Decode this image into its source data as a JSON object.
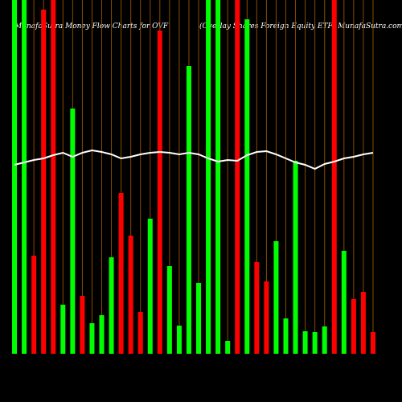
{
  "chart_data": {
    "type": "bar",
    "title": "MunafaSutra  Money Flow  Charts for OVF",
    "subtitle": "(Overlay Shares Foreign  Equity ETF) MunafaSutra.com",
    "ylim": [
      0,
      440
    ],
    "series": [
      {
        "name": "Money Flow",
        "colors": [
          "#00ff00",
          "#00ff00",
          "#ff0000",
          "#ff0000",
          "#ff0000",
          "#00ff00",
          "#00ff00",
          "#ff0000",
          "#00ff00",
          "#00ff00",
          "#00ff00",
          "#ff0000",
          "#ff0000",
          "#ff0000",
          "#00ff00",
          "#ff0000",
          "#00ff00",
          "#00ff00",
          "#00ff00",
          "#00ff00",
          "#00ff00",
          "#00ff00",
          "#00ff00",
          "#ff0000",
          "#00ff00",
          "#ff0000",
          "#ff0000",
          "#00ff00",
          "#00ff00",
          "#00ff00",
          "#00ff00",
          "#00ff00",
          "#00ff00",
          "#ff0000",
          "#00ff00",
          "#ff0000",
          "#ff0000",
          "#ff0000"
        ],
        "values": [
          440,
          440,
          122,
          428,
          440,
          61,
          305,
          72,
          38,
          48,
          120,
          200,
          147,
          52,
          168,
          402,
          109,
          35,
          358,
          88,
          440,
          440,
          16,
          440,
          416,
          114,
          90,
          140,
          44,
          240,
          28,
          27,
          34,
          440,
          128,
          68,
          77,
          27
        ]
      },
      {
        "name": "Price",
        "color": "#ffffff",
        "values": [
          235,
          238,
          241,
          243,
          247,
          250,
          245,
          250,
          253,
          251,
          248,
          243,
          245,
          248,
          250,
          251,
          250,
          248,
          250,
          248,
          243,
          239,
          241,
          240,
          247,
          251,
          252,
          248,
          243,
          238,
          235,
          230,
          236,
          239,
          243,
          245,
          248,
          250
        ]
      }
    ],
    "grid_color": "#8b4a00"
  }
}
